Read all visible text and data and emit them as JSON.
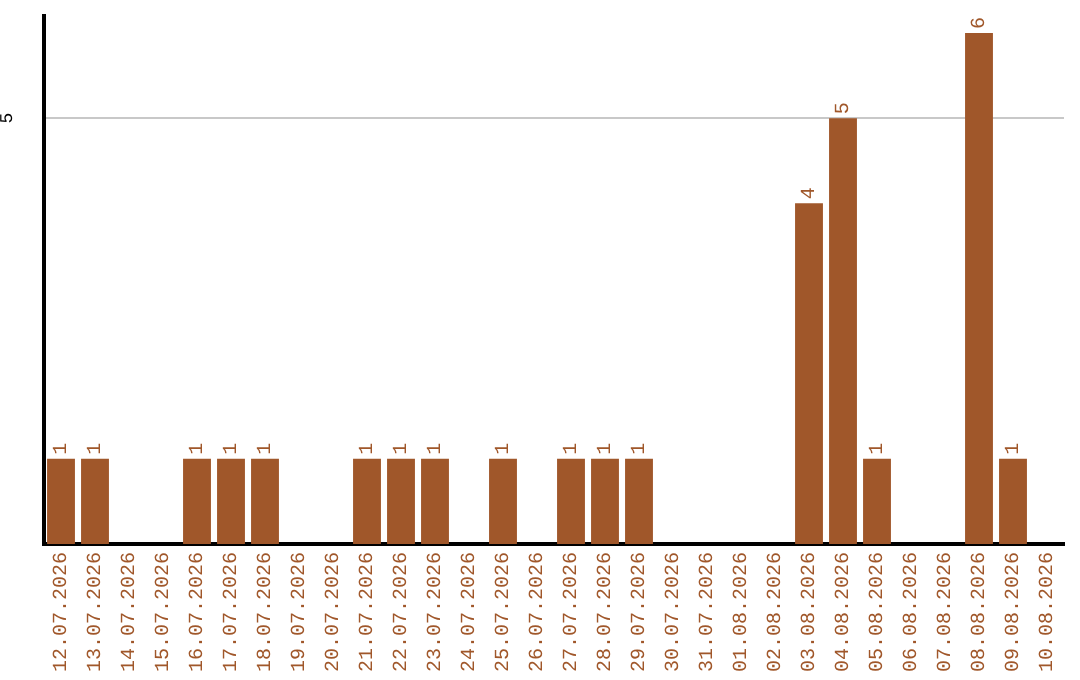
{
  "chart_data": {
    "type": "bar",
    "categories": [
      "12.07.2026",
      "13.07.2026",
      "14.07.2026",
      "15.07.2026",
      "16.07.2026",
      "17.07.2026",
      "18.07.2026",
      "19.07.2026",
      "20.07.2026",
      "21.07.2026",
      "22.07.2026",
      "23.07.2026",
      "24.07.2026",
      "25.07.2026",
      "26.07.2026",
      "27.07.2026",
      "28.07.2026",
      "29.07.2026",
      "30.07.2026",
      "31.07.2026",
      "01.08.2026",
      "02.08.2026",
      "03.08.2026",
      "04.08.2026",
      "05.08.2026",
      "06.08.2026",
      "07.08.2026",
      "08.08.2026",
      "09.08.2026",
      "10.08.2026"
    ],
    "values": [
      1,
      1,
      null,
      null,
      1,
      1,
      1,
      null,
      null,
      1,
      1,
      1,
      null,
      1,
      null,
      1,
      1,
      1,
      null,
      null,
      null,
      null,
      4,
      5,
      1,
      null,
      null,
      6,
      1,
      null
    ],
    "color": "#a0572a",
    "ylim": [
      0,
      6.2
    ],
    "yticks": [
      5
    ],
    "grid": "y",
    "data_labels": true,
    "legend": false
  }
}
